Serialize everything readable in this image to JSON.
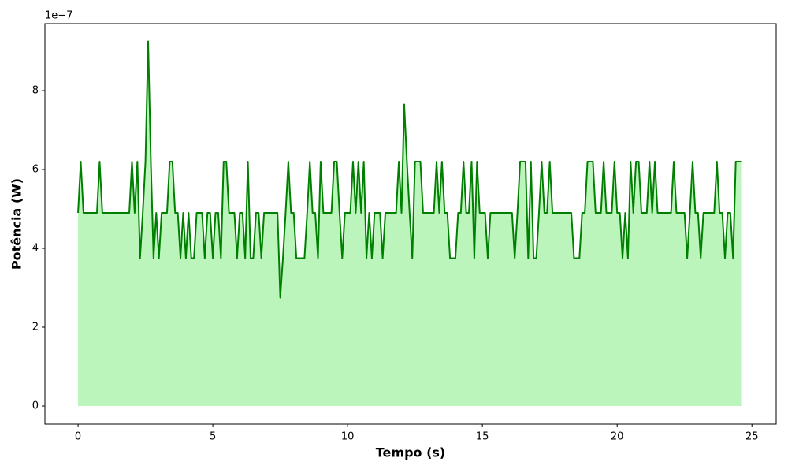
{
  "chart_data": {
    "type": "area",
    "xlabel": "Tempo (s)",
    "ylabel": "Potência (W)",
    "y_offset_label": "1e−7",
    "xlim": [
      -1.23,
      25.9
    ],
    "ylim": [
      -0.46,
      9.7
    ],
    "xticks": [
      0,
      5,
      10,
      15,
      20,
      25
    ],
    "yticks": [
      0,
      2,
      4,
      6,
      8
    ],
    "line_color": "#008000",
    "fill_color": "#90ee90",
    "x": [
      0,
      0.1,
      0.2,
      0.3,
      0.4,
      0.5,
      0.6,
      0.7,
      0.8,
      0.9,
      1,
      1.1,
      1.2,
      1.3,
      1.4,
      1.5,
      1.6,
      1.7,
      1.8,
      1.9,
      2,
      2.1,
      2.2,
      2.3,
      2.4,
      2.5,
      2.6,
      2.7,
      2.8,
      2.9,
      3,
      3.1,
      3.2,
      3.3,
      3.4,
      3.5,
      3.6,
      3.7,
      3.8,
      3.9,
      4,
      4.1,
      4.2,
      4.3,
      4.4,
      4.5,
      4.6,
      4.7,
      4.8,
      4.9,
      5,
      5.1,
      5.2,
      5.3,
      5.4,
      5.5,
      5.6,
      5.7,
      5.8,
      5.9,
      6,
      6.1,
      6.2,
      6.3,
      6.4,
      6.5,
      6.6,
      6.7,
      6.8,
      6.9,
      7,
      7.1,
      7.2,
      7.3,
      7.4,
      7.5,
      7.6,
      7.7,
      7.8,
      7.9,
      8,
      8.1,
      8.2,
      8.3,
      8.4,
      8.5,
      8.6,
      8.7,
      8.8,
      8.9,
      9,
      9.1,
      9.2,
      9.3,
      9.4,
      9.5,
      9.6,
      9.7,
      9.8,
      9.9,
      10,
      10.1,
      10.2,
      10.3,
      10.4,
      10.5,
      10.6,
      10.7,
      10.8,
      10.9,
      11,
      11.1,
      11.2,
      11.3,
      11.4,
      11.5,
      11.6,
      11.7,
      11.8,
      11.9,
      12,
      12.1,
      12.2,
      12.3,
      12.4,
      12.5,
      12.6,
      12.7,
      12.8,
      12.9,
      13,
      13.1,
      13.2,
      13.3,
      13.4,
      13.5,
      13.6,
      13.7,
      13.8,
      13.9,
      14,
      14.1,
      14.2,
      14.3,
      14.4,
      14.5,
      14.6,
      14.7,
      14.8,
      14.9,
      15,
      15.1,
      15.2,
      15.3,
      15.4,
      15.5,
      15.6,
      15.7,
      15.8,
      15.9,
      16,
      16.1,
      16.2,
      16.3,
      16.4,
      16.5,
      16.6,
      16.7,
      16.8,
      16.9,
      17,
      17.1,
      17.2,
      17.3,
      17.4,
      17.5,
      17.6,
      17.7,
      17.8,
      17.9,
      18,
      18.1,
      18.2,
      18.3,
      18.4,
      18.5,
      18.6,
      18.7,
      18.8,
      18.9,
      19,
      19.1,
      19.2,
      19.3,
      19.4,
      19.5,
      19.6,
      19.7,
      19.8,
      19.9,
      20,
      20.1,
      20.2,
      20.3,
      20.4,
      20.5,
      20.6,
      20.7,
      20.8,
      20.9,
      21,
      21.1,
      21.2,
      21.3,
      21.4,
      21.5,
      21.6,
      21.7,
      21.8,
      21.9,
      22,
      22.1,
      22.2,
      22.3,
      22.4,
      22.5,
      22.6,
      22.7,
      22.8,
      22.9,
      23,
      23.1,
      23.2,
      23.3,
      23.4,
      23.5,
      23.6,
      23.7,
      23.8,
      23.9,
      24,
      24.1,
      24.2,
      24.3,
      24.4,
      24.5,
      24.6
    ],
    "values": [
      4.9,
      6.2,
      4.9,
      4.9,
      4.9,
      4.9,
      4.9,
      4.9,
      6.2,
      4.9,
      4.9,
      4.9,
      4.9,
      4.9,
      4.9,
      4.9,
      4.9,
      4.9,
      4.9,
      4.9,
      6.2,
      4.9,
      6.2,
      3.75,
      4.9,
      6.2,
      9.25,
      6.2,
      3.75,
      4.9,
      3.75,
      4.9,
      4.9,
      4.9,
      6.2,
      6.2,
      4.9,
      4.9,
      3.75,
      4.9,
      3.75,
      4.9,
      3.75,
      3.75,
      4.9,
      4.9,
      4.9,
      3.75,
      4.9,
      4.9,
      3.75,
      4.9,
      4.9,
      3.75,
      6.2,
      6.2,
      4.9,
      4.9,
      4.9,
      3.75,
      4.9,
      4.9,
      3.75,
      6.2,
      3.75,
      3.75,
      4.9,
      4.9,
      3.75,
      4.9,
      4.9,
      4.9,
      4.9,
      4.9,
      4.9,
      2.75,
      3.75,
      4.9,
      6.2,
      4.9,
      4.9,
      3.75,
      3.75,
      3.75,
      3.75,
      4.9,
      6.2,
      4.9,
      4.9,
      3.75,
      6.2,
      4.9,
      4.9,
      4.9,
      4.9,
      6.2,
      6.2,
      4.9,
      3.75,
      4.9,
      4.9,
      4.9,
      6.2,
      4.9,
      6.2,
      4.9,
      6.2,
      3.75,
      4.9,
      3.75,
      4.9,
      4.9,
      4.9,
      3.75,
      4.9,
      4.9,
      4.9,
      4.9,
      4.9,
      6.2,
      4.9,
      7.65,
      6.2,
      4.9,
      3.75,
      6.2,
      6.2,
      6.2,
      4.9,
      4.9,
      4.9,
      4.9,
      4.9,
      6.2,
      4.9,
      6.2,
      4.9,
      4.9,
      3.75,
      3.75,
      3.75,
      4.9,
      4.9,
      6.2,
      4.9,
      4.9,
      6.2,
      3.75,
      6.2,
      4.9,
      4.9,
      4.9,
      3.75,
      4.9,
      4.9,
      4.9,
      4.9,
      4.9,
      4.9,
      4.9,
      4.9,
      4.9,
      3.75,
      4.9,
      6.2,
      6.2,
      6.2,
      3.75,
      6.2,
      3.75,
      3.75,
      4.9,
      6.2,
      4.9,
      4.9,
      6.2,
      4.9,
      4.9,
      4.9,
      4.9,
      4.9,
      4.9,
      4.9,
      4.9,
      3.75,
      3.75,
      3.75,
      4.9,
      4.9,
      6.2,
      6.2,
      6.2,
      4.9,
      4.9,
      4.9,
      6.2,
      4.9,
      4.9,
      4.9,
      6.2,
      4.9,
      4.9,
      3.75,
      4.9,
      3.75,
      6.2,
      4.9,
      6.2,
      6.2,
      4.9,
      4.9,
      4.9,
      6.2,
      4.9,
      6.2,
      4.9,
      4.9,
      4.9,
      4.9,
      4.9,
      4.9,
      6.2,
      4.9,
      4.9,
      4.9,
      4.9,
      3.75,
      4.9,
      6.2,
      4.9,
      4.9,
      3.75,
      4.9,
      4.9,
      4.9,
      4.9,
      4.9,
      6.2,
      4.9,
      4.9,
      3.75,
      4.9,
      4.9,
      3.75,
      6.2,
      6.2,
      6.2
    ]
  }
}
